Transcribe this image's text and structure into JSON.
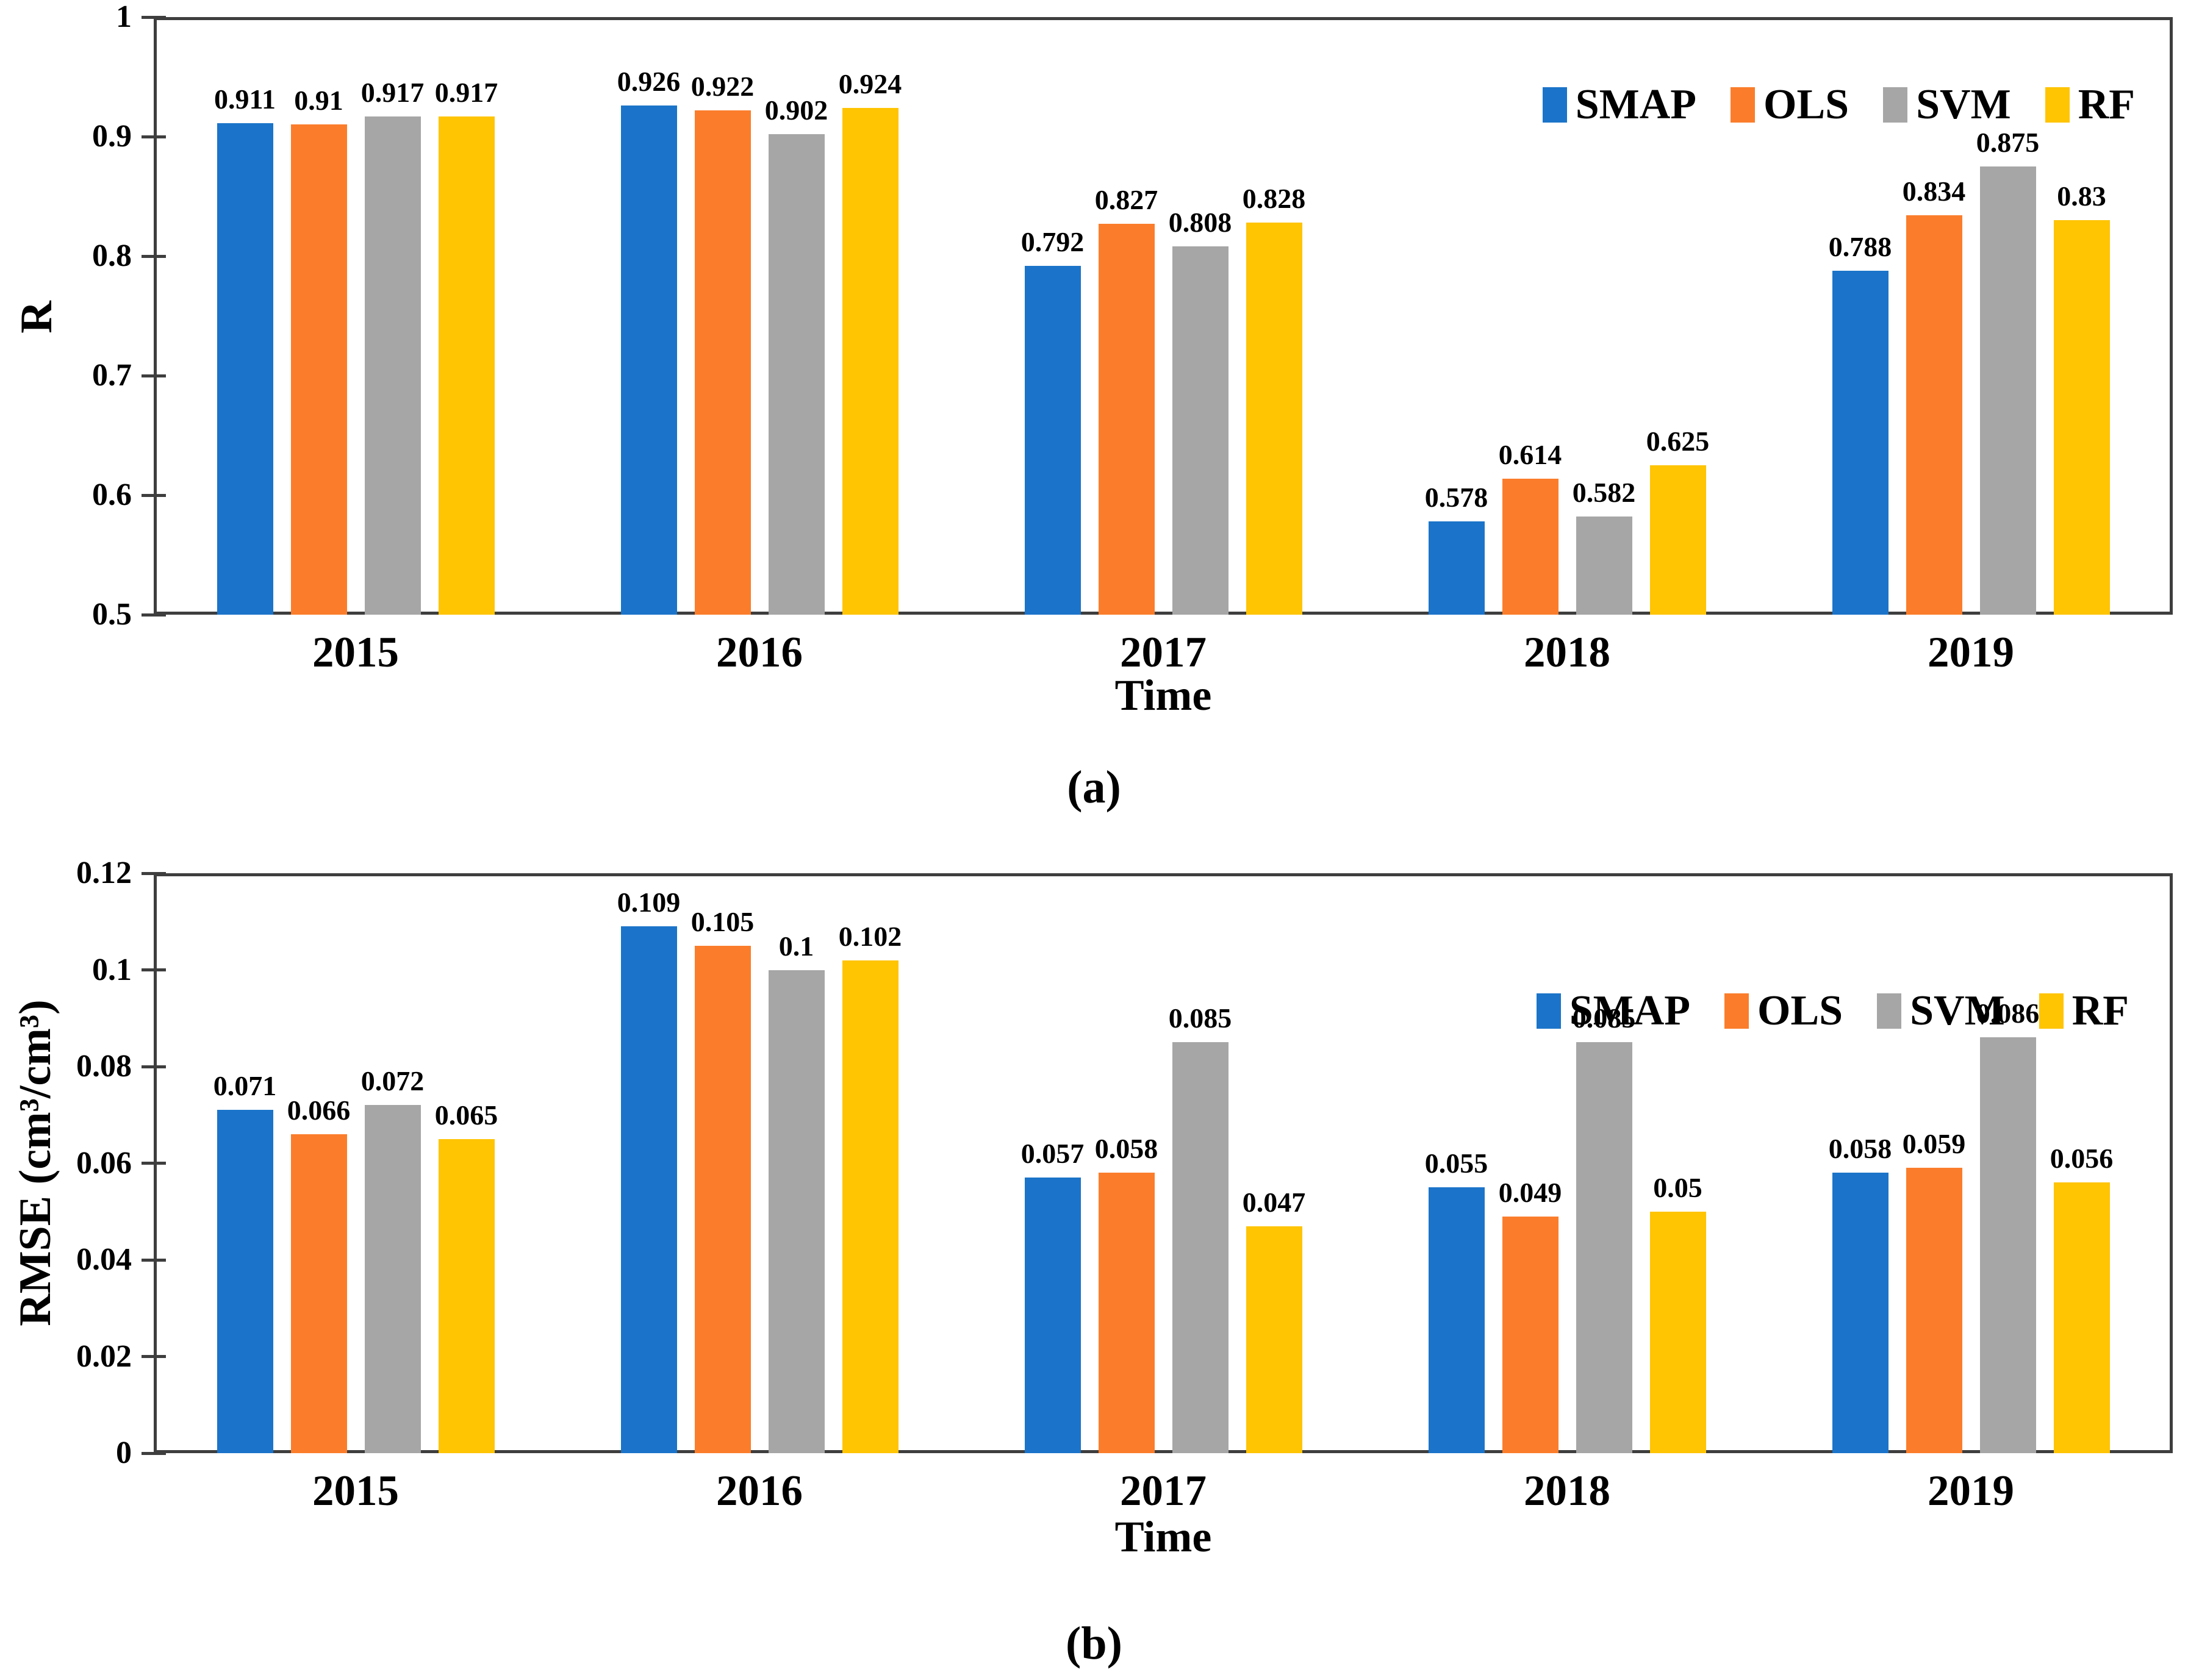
{
  "colors": {
    "smap": "#1B74C9",
    "ols": "#FB7D2B",
    "svm": "#A6A6A6",
    "rf": "#FFC402",
    "frame": "#3E3E3E",
    "text": "#000000"
  },
  "chart_data": [
    {
      "id": "a",
      "type": "bar",
      "caption": "(a)",
      "xlabel": "Time",
      "ylabel": "R",
      "categories": [
        "2015",
        "2016",
        "2017",
        "2018",
        "2019"
      ],
      "ylim": [
        0.5,
        1.0
      ],
      "yticks": [
        {
          "value": 1.0,
          "label": "1"
        },
        {
          "value": 0.9,
          "label": "0.9"
        },
        {
          "value": 0.8,
          "label": "0.8"
        },
        {
          "value": 0.7,
          "label": "0.7"
        },
        {
          "value": 0.6,
          "label": "0.6"
        },
        {
          "value": 0.5,
          "label": "0.5"
        }
      ],
      "grid": false,
      "legend_position": "top-right-inside",
      "series": [
        {
          "name": "SMAP",
          "color": "smap",
          "values": [
            0.911,
            0.926,
            0.792,
            0.578,
            0.788
          ],
          "labels": [
            "0.911",
            "0.926",
            "0.792",
            "0.578",
            "0.788"
          ]
        },
        {
          "name": "OLS",
          "color": "ols",
          "values": [
            0.91,
            0.922,
            0.827,
            0.614,
            0.834
          ],
          "labels": [
            "0.91",
            "0.922",
            "0.827",
            "0.614",
            "0.834"
          ]
        },
        {
          "name": "SVM",
          "color": "svm",
          "values": [
            0.917,
            0.902,
            0.808,
            0.582,
            0.875
          ],
          "labels": [
            "0.917",
            "0.902",
            "0.808",
            "0.582",
            "0.875"
          ]
        },
        {
          "name": "RF",
          "color": "rf",
          "values": [
            0.917,
            0.924,
            0.828,
            0.625,
            0.83
          ],
          "labels": [
            "0.917",
            "0.924",
            "0.828",
            "0.625",
            "0.83"
          ]
        }
      ]
    },
    {
      "id": "b",
      "type": "bar",
      "caption": "(b)",
      "xlabel": "Time",
      "ylabel": "RMSE (cm³/cm³)",
      "categories": [
        "2015",
        "2016",
        "2017",
        "2018",
        "2019"
      ],
      "ylim": [
        0,
        0.12
      ],
      "yticks": [
        {
          "value": 0.12,
          "label": "0.12"
        },
        {
          "value": 0.1,
          "label": "0.1"
        },
        {
          "value": 0.08,
          "label": "0.08"
        },
        {
          "value": 0.06,
          "label": "0.06"
        },
        {
          "value": 0.04,
          "label": "0.04"
        },
        {
          "value": 0.02,
          "label": "0.02"
        },
        {
          "value": 0.0,
          "label": "0"
        }
      ],
      "grid": false,
      "legend_position": "top-right-inside",
      "series": [
        {
          "name": "SMAP",
          "color": "smap",
          "values": [
            0.071,
            0.109,
            0.057,
            0.055,
            0.058
          ],
          "labels": [
            "0.071",
            "0.109",
            "0.057",
            "0.055",
            "0.058"
          ]
        },
        {
          "name": "OLS",
          "color": "ols",
          "values": [
            0.066,
            0.105,
            0.058,
            0.049,
            0.059
          ],
          "labels": [
            "0.066",
            "0.105",
            "0.058",
            "0.049",
            "0.059"
          ]
        },
        {
          "name": "SVM",
          "color": "svm",
          "values": [
            0.072,
            0.1,
            0.085,
            0.085,
            0.086
          ],
          "labels": [
            "0.072",
            "0.1",
            "0.085",
            "0.085",
            "0.086"
          ]
        },
        {
          "name": "RF",
          "color": "rf",
          "values": [
            0.065,
            0.102,
            0.047,
            0.05,
            0.056
          ],
          "labels": [
            "0.065",
            "0.102",
            "0.047",
            "0.05",
            "0.056"
          ]
        }
      ]
    }
  ]
}
